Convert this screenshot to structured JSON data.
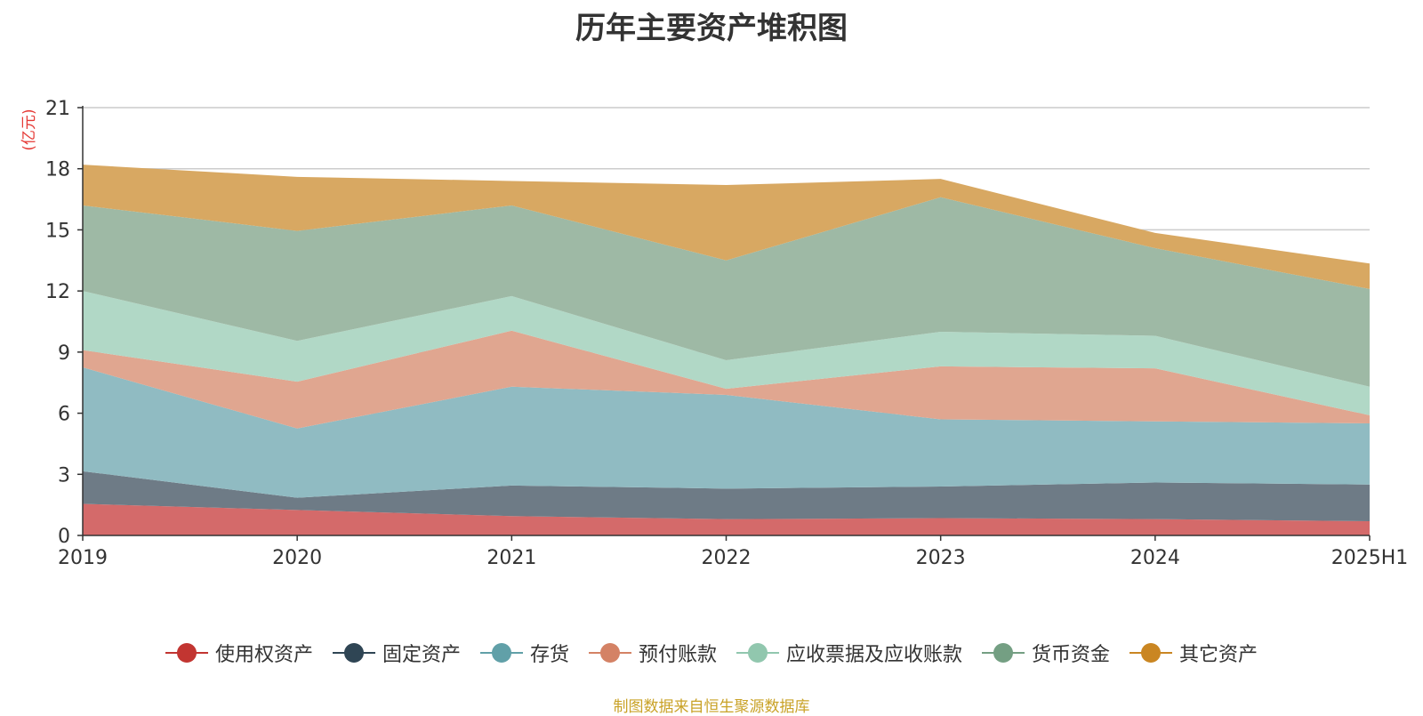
{
  "chart_data": {
    "type": "area",
    "stacked": true,
    "title": "历年主要资产堆积图",
    "ylabel": "(亿元)",
    "xlabel": "",
    "categories": [
      "2019",
      "2020",
      "2021",
      "2022",
      "2023",
      "2024",
      "2025H1"
    ],
    "ylim": [
      0,
      21
    ],
    "yticks": [
      0,
      3,
      6,
      9,
      12,
      15,
      18,
      21
    ],
    "grid": true,
    "legend_position": "bottom",
    "series": [
      {
        "name": "使用权资产",
        "color": "#c23531",
        "fill": "#d46a6a",
        "values": [
          1.55,
          1.25,
          0.95,
          0.8,
          0.85,
          0.8,
          0.7
        ]
      },
      {
        "name": "固定资产",
        "color": "#2f4554",
        "fill": "#6e7b86",
        "values": [
          1.6,
          0.6,
          1.5,
          1.5,
          1.55,
          1.8,
          1.8
        ]
      },
      {
        "name": "存货",
        "color": "#61a0a8",
        "fill": "#90bbc2",
        "values": [
          5.1,
          3.4,
          4.85,
          4.6,
          3.3,
          3.0,
          3.0
        ]
      },
      {
        "name": "预付账款",
        "color": "#d48265",
        "fill": "#e0a690",
        "values": [
          0.85,
          2.3,
          2.75,
          0.3,
          2.6,
          2.6,
          0.4
        ]
      },
      {
        "name": "应收票据及应收账款",
        "color": "#91c7ae",
        "fill": "#b1d8c6",
        "values": [
          2.9,
          2.0,
          1.7,
          1.4,
          1.7,
          1.6,
          1.4
        ]
      },
      {
        "name": "货币资金",
        "color": "#749f83",
        "fill": "#9eb9a5",
        "values": [
          4.2,
          5.4,
          4.45,
          4.9,
          6.6,
          4.3,
          4.8
        ]
      },
      {
        "name": "其它资产",
        "color": "#ca8622",
        "fill": "#d8a862",
        "values": [
          2.0,
          2.65,
          1.2,
          3.7,
          0.9,
          0.75,
          1.25
        ]
      }
    ]
  },
  "footer": {
    "source": "制图数据来自恒生聚源数据库"
  }
}
